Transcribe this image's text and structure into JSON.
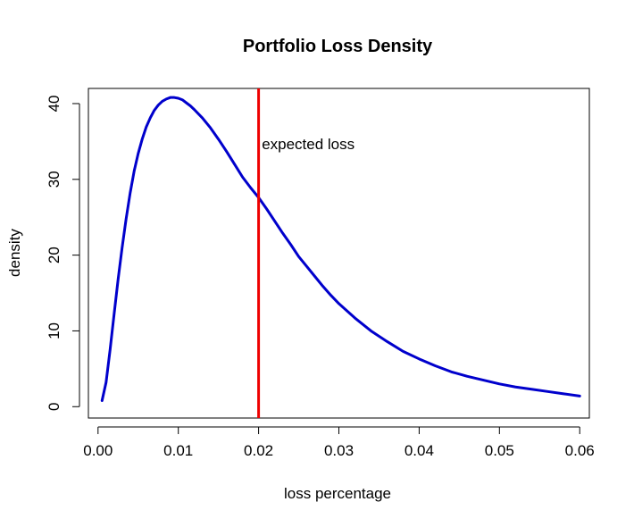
{
  "chart_data": {
    "type": "line",
    "title": "Portfolio Loss Density",
    "xlabel": "loss percentage",
    "ylabel": "density",
    "xlim": [
      -0.0012,
      0.0612
    ],
    "ylim": [
      -1.5,
      42
    ],
    "x_ticks": [
      0.0,
      0.01,
      0.02,
      0.03,
      0.04,
      0.05,
      0.06
    ],
    "x_tick_labels": [
      "0.00",
      "0.01",
      "0.02",
      "0.03",
      "0.04",
      "0.05",
      "0.06"
    ],
    "y_ticks": [
      0,
      10,
      20,
      30,
      40
    ],
    "y_tick_labels": [
      "0",
      "10",
      "20",
      "30",
      "40"
    ],
    "grid": false,
    "series": [
      {
        "color": "#0000cc",
        "x": [
          0.0005,
          0.001,
          0.0015,
          0.002,
          0.0025,
          0.003,
          0.0035,
          0.004,
          0.0045,
          0.005,
          0.0055,
          0.006,
          0.0065,
          0.007,
          0.0075,
          0.008,
          0.0085,
          0.009,
          0.0095,
          0.01,
          0.0105,
          0.011,
          0.0115,
          0.012,
          0.013,
          0.014,
          0.015,
          0.016,
          0.017,
          0.018,
          0.019,
          0.02,
          0.021,
          0.022,
          0.023,
          0.024,
          0.025,
          0.026,
          0.027,
          0.028,
          0.029,
          0.03,
          0.032,
          0.034,
          0.036,
          0.038,
          0.04,
          0.042,
          0.044,
          0.046,
          0.048,
          0.05,
          0.052,
          0.054,
          0.056,
          0.058,
          0.06
        ],
        "y": [
          0.8,
          3.2,
          7.5,
          12.2,
          16.8,
          21.0,
          24.8,
          28.2,
          31.1,
          33.4,
          35.3,
          36.9,
          38.1,
          39.1,
          39.8,
          40.3,
          40.6,
          40.8,
          40.8,
          40.7,
          40.5,
          40.1,
          39.7,
          39.2,
          38.1,
          36.8,
          35.3,
          33.7,
          32.0,
          30.3,
          28.9,
          27.6,
          26.1,
          24.5,
          22.9,
          21.4,
          19.8,
          18.5,
          17.2,
          15.9,
          14.7,
          13.6,
          11.7,
          10.0,
          8.6,
          7.3,
          6.3,
          5.4,
          4.6,
          4.0,
          3.5,
          3.0,
          2.6,
          2.3,
          2.0,
          1.7,
          1.4
        ]
      }
    ],
    "vline": {
      "x": 0.02,
      "color": "#ee0000"
    },
    "annotations": [
      {
        "text": "expected loss",
        "x": 0.0204,
        "y": 34.5
      }
    ]
  }
}
